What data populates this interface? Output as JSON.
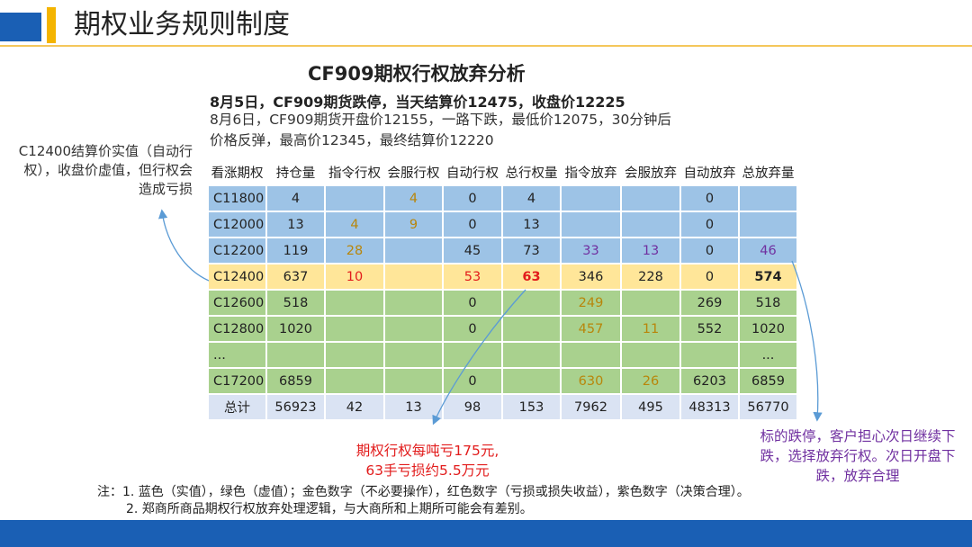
{
  "header": {
    "title": "期权业务规则制度"
  },
  "main_title": "CF909期权行权放弃分析",
  "subtitle_bold": "8月5日，CF909期货跌停，当天结算价12475，收盘价12225",
  "subtitle_line2": "8月6日，CF909期货开盘价12155，一路下跌，最低价12075，30分钟后",
  "subtitle_line3": "价格反弹，最高价12345，最终结算价12220",
  "left_note": "C12400结算价实值（自动行权），收盘价虚值，但行权会造成亏损",
  "table": {
    "headers": [
      "看涨期权",
      "持仓量",
      "指令行权",
      "会服行权",
      "自动行权",
      "总行权量",
      "指令放弃",
      "会服放弃",
      "自动放弃",
      "总放弃量"
    ],
    "rows": [
      {
        "cells": [
          "C11800",
          "4",
          "",
          "4",
          "0",
          "4",
          "",
          "",
          "0",
          ""
        ]
      },
      {
        "cells": [
          "C12000",
          "13",
          "4",
          "9",
          "0",
          "13",
          "",
          "",
          "0",
          ""
        ]
      },
      {
        "cells": [
          "C12200",
          "119",
          "28",
          "",
          "45",
          "73",
          "33",
          "13",
          "0",
          "46"
        ]
      },
      {
        "cells": [
          "C12400",
          "637",
          "10",
          "",
          "53",
          "63",
          "346",
          "228",
          "0",
          "574"
        ]
      },
      {
        "cells": [
          "C12600",
          "518",
          "",
          "",
          "0",
          "",
          "249",
          "",
          "269",
          "518"
        ]
      },
      {
        "cells": [
          "C12800",
          "1020",
          "",
          "",
          "0",
          "",
          "457",
          "11",
          "552",
          "1020"
        ]
      },
      {
        "cells": [
          "...",
          "",
          "",
          "",
          "",
          "",
          "",
          "",
          "",
          "..."
        ]
      },
      {
        "cells": [
          "C17200",
          "6859",
          "",
          "",
          "0",
          "",
          "630",
          "26",
          "6203",
          "6859"
        ]
      },
      {
        "cells": [
          "总计",
          "56923",
          "42",
          "13",
          "98",
          "153",
          "7962",
          "495",
          "48313",
          "56770"
        ]
      }
    ]
  },
  "red_note_line1": "期权行权每吨亏175元,",
  "red_note_line2": "63手亏损约5.5万元",
  "purple_note": "标的跌停，客户担心次日继续下跌，选择放弃行权。次日开盘下跌，放弃合理",
  "notes": {
    "line1": "注：1. 蓝色（实值），绿色（虚值）；金色数字（不必要操作），红色数字（亏损或损失收益），紫色数字（决策合理）。",
    "line2": "2. 郑商所商品期权行权放弃处理逻辑，与大商所和上期所可能会有差别。"
  },
  "colors": {
    "blue_row": "#9dc3e6",
    "yellow_row": "#ffe699",
    "green_row": "#a9d18e",
    "total_row": "#dae3f3",
    "gold_text": "#b8860b",
    "red_text": "#e21c1c",
    "purple_text": "#7030a0",
    "header_blue": "#1a5fb4",
    "header_yellow": "#f4b400"
  }
}
